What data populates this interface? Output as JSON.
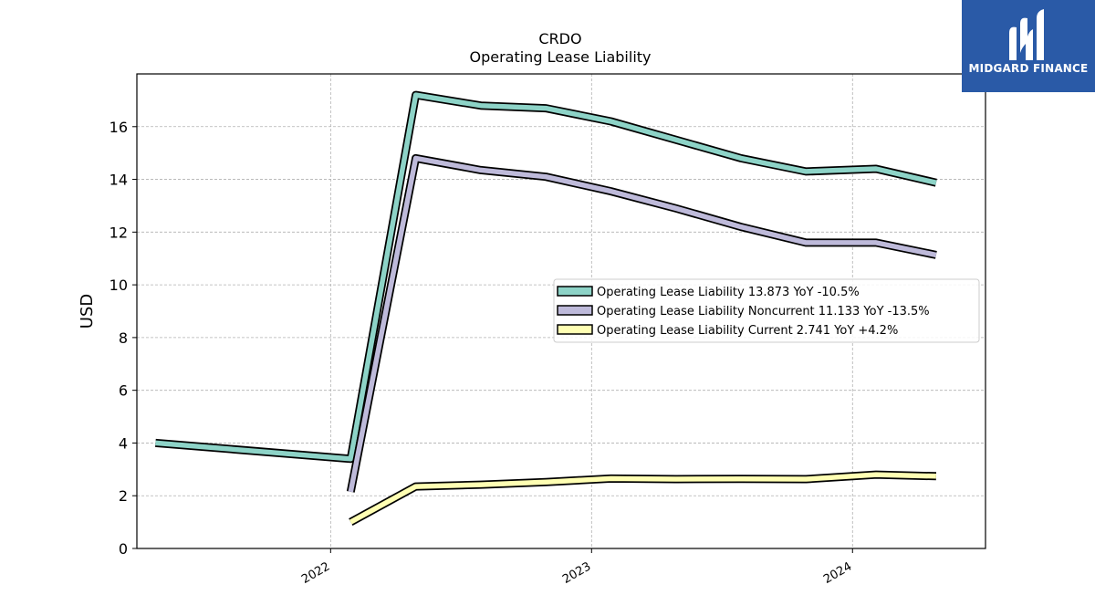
{
  "chart_data": {
    "type": "line",
    "title": "CRDO",
    "subtitle": "Operating Lease Liability",
    "ylabel": "USD",
    "ylim": [
      0,
      18
    ],
    "xlim": [
      "2021-04-05",
      "2024-07-05"
    ],
    "yticks": [
      0,
      2,
      4,
      6,
      8,
      10,
      12,
      14,
      16
    ],
    "xticks": [
      {
        "label": "2022",
        "date": "2022-01-01"
      },
      {
        "label": "2023",
        "date": "2023-01-01"
      },
      {
        "label": "2024",
        "date": "2024-01-01"
      }
    ],
    "grid": true,
    "legend_position": "center-right",
    "series": [
      {
        "name": "Operating Lease Liability",
        "legend": "Operating Lease Liability  13.873 YoY -10.5%",
        "color": "#8dd3c7",
        "points": [
          [
            "2021-05-01",
            4.0
          ],
          [
            "2022-01-29",
            3.4
          ],
          [
            "2022-04-30",
            17.2
          ],
          [
            "2022-07-30",
            16.8
          ],
          [
            "2022-10-29",
            16.7
          ],
          [
            "2023-01-28",
            16.2
          ],
          [
            "2023-04-29",
            15.5
          ],
          [
            "2023-07-29",
            14.8
          ],
          [
            "2023-10-28",
            14.3
          ],
          [
            "2024-02-03",
            14.4
          ],
          [
            "2024-04-27",
            13.873
          ]
        ]
      },
      {
        "name": "Operating Lease Liability Noncurrent",
        "legend": "Operating Lease Liability Noncurrent  11.133 YoY -13.5%",
        "color": "#bebada",
        "points": [
          [
            "2022-01-29",
            2.15
          ],
          [
            "2022-04-30",
            14.8
          ],
          [
            "2022-07-30",
            14.35
          ],
          [
            "2022-10-29",
            14.1
          ],
          [
            "2023-01-28",
            13.55
          ],
          [
            "2023-04-29",
            12.9
          ],
          [
            "2023-07-29",
            12.2
          ],
          [
            "2023-10-28",
            11.6
          ],
          [
            "2024-02-03",
            11.6
          ],
          [
            "2024-04-27",
            11.133
          ]
        ]
      },
      {
        "name": "Operating Lease Liability Current",
        "legend": "Operating Lease Liability Current  2.741 YoY +4.2%",
        "color": "#ffffb3",
        "points": [
          [
            "2022-01-29",
            1.0
          ],
          [
            "2022-04-30",
            2.35
          ],
          [
            "2022-07-30",
            2.42
          ],
          [
            "2022-10-29",
            2.52
          ],
          [
            "2023-01-28",
            2.65
          ],
          [
            "2023-04-29",
            2.63
          ],
          [
            "2023-07-29",
            2.64
          ],
          [
            "2023-10-28",
            2.63
          ],
          [
            "2024-02-03",
            2.8
          ],
          [
            "2024-04-27",
            2.741
          ]
        ]
      }
    ]
  },
  "watermark": {
    "text": "MIDGARD FINANCE",
    "bg_color": "#2a5aa7"
  }
}
